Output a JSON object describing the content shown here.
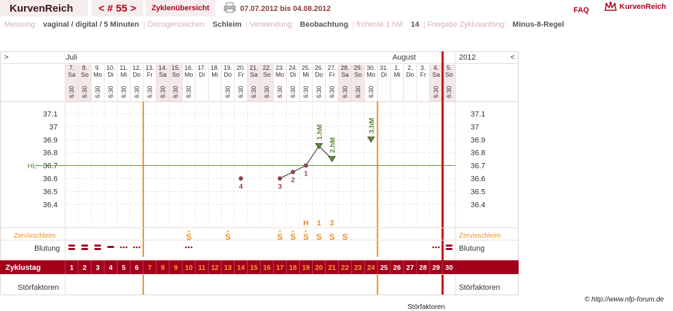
{
  "app": {
    "name": "KurvenReich",
    "cycle_nr": "< # 55 >",
    "overview_link": "Zyklenübersicht",
    "date_range": "07.07.2012 bis 04.08.2012",
    "faq": "FAQ",
    "logo_text": "KurvenReich"
  },
  "info": [
    {
      "label": "Messung:",
      "value": "vaginal / digital / 5 Minuten"
    },
    {
      "label": "Östrogenzeichen:",
      "value": "Schleim"
    },
    {
      "label": "Verwendung:",
      "value": "Beobachtung"
    },
    {
      "label": "früheste 1.hM:",
      "value": "14"
    },
    {
      "label": "Freigabe Zyklusanfang:",
      "value": "Minus-8-Regel"
    }
  ],
  "nav": {
    "prev": ">",
    "next": "<",
    "year": "2012",
    "month1": "Juli",
    "month2": "August"
  },
  "days": [
    {
      "d": "7.",
      "w": "Sa",
      "t": "6:30"
    },
    {
      "d": "8.",
      "w": "So",
      "t": "6:30"
    },
    {
      "d": "9.",
      "w": "Mo",
      "t": "6:30"
    },
    {
      "d": "10.",
      "w": "Di",
      "t": "6:30"
    },
    {
      "d": "11.",
      "w": "Mi",
      "t": "6:30"
    },
    {
      "d": "12.",
      "w": "Do",
      "t": "6:30"
    },
    {
      "d": "13.",
      "w": "Fr",
      "t": "6:30"
    },
    {
      "d": "14.",
      "w": "Sa",
      "t": "6:30"
    },
    {
      "d": "15.",
      "w": "So",
      "t": "6:30"
    },
    {
      "d": "16.",
      "w": "Mo",
      "t": "6:30"
    },
    {
      "d": "17.",
      "w": "Di",
      "t": ""
    },
    {
      "d": "18.",
      "w": "Mi",
      "t": ""
    },
    {
      "d": "19.",
      "w": "Do",
      "t": "6:30"
    },
    {
      "d": "20.",
      "w": "Fr",
      "t": "6:30"
    },
    {
      "d": "21.",
      "w": "Sa",
      "t": "6:30"
    },
    {
      "d": "22.",
      "w": "So",
      "t": "6:30"
    },
    {
      "d": "23.",
      "w": "Mo",
      "t": "6:30"
    },
    {
      "d": "24.",
      "w": "Di",
      "t": "6:30"
    },
    {
      "d": "25.",
      "w": "Mi",
      "t": "6:30"
    },
    {
      "d": "26.",
      "w": "Do",
      "t": "6:30"
    },
    {
      "d": "27.",
      "w": "Fr",
      "t": "6:30"
    },
    {
      "d": "28.",
      "w": "Sa",
      "t": "6:30"
    },
    {
      "d": "29.",
      "w": "So",
      "t": "6:30"
    },
    {
      "d": "30.",
      "w": "Mo",
      "t": "6:30"
    },
    {
      "d": "31.",
      "w": "Di",
      "t": ""
    },
    {
      "d": "1.",
      "w": "Mi",
      "t": ""
    },
    {
      "d": "2.",
      "w": "Do",
      "t": ""
    },
    {
      "d": "3.",
      "w": "Fr",
      "t": ""
    },
    {
      "d": "4.",
      "w": "Sa",
      "t": "6:30"
    },
    {
      "d": "5.",
      "w": "So",
      "t": "6:30"
    }
  ],
  "y_ticks": [
    "37.1",
    "37",
    "36.9",
    "36.8",
    "36.7",
    "36.6",
    "36.5",
    "36.4"
  ],
  "hl_label": "HL:",
  "hl_value": 36.7,
  "temps": [
    {
      "day": 14,
      "temp": 36.6,
      "label": "4",
      "kind": "dot"
    },
    {
      "day": 17,
      "temp": 36.6,
      "label": "3",
      "kind": "dot"
    },
    {
      "day": 18,
      "temp": 36.65,
      "label": "2",
      "kind": "dot"
    },
    {
      "day": 19,
      "temp": 36.7,
      "label": "1",
      "kind": "dot"
    },
    {
      "day": 20,
      "temp": 36.85,
      "label": "1.hM",
      "kind": "tri"
    },
    {
      "day": 21,
      "temp": 36.75,
      "label": "2.hM",
      "kind": "tri"
    },
    {
      "day": 24,
      "temp": 36.9,
      "label": "3.hM",
      "kind": "tri"
    }
  ],
  "mucus_label": "Zervixschleim",
  "mucus": [
    {
      "day": 10,
      "sym": "S",
      "mark": "+"
    },
    {
      "day": 13,
      "sym": "S",
      "mark": "+"
    },
    {
      "day": 17,
      "sym": "S",
      "mark": "+"
    },
    {
      "day": 18,
      "sym": "S",
      "mark": "+"
    },
    {
      "day": 19,
      "sym": "S",
      "mark": "+"
    },
    {
      "day": 20,
      "sym": "S",
      "mark": ""
    },
    {
      "day": 21,
      "sym": "S",
      "mark": ""
    },
    {
      "day": 22,
      "sym": "S",
      "mark": ""
    }
  ],
  "peak_marks": [
    {
      "day": 19,
      "text": "H"
    },
    {
      "day": 20,
      "text": "1"
    },
    {
      "day": 21,
      "text": "2"
    }
  ],
  "bleeding_label": "Blutung",
  "bleeding": [
    {
      "day": 1,
      "level": "heavy"
    },
    {
      "day": 2,
      "level": "heavy"
    },
    {
      "day": 3,
      "level": "heavy"
    },
    {
      "day": 4,
      "level": "medium"
    },
    {
      "day": 5,
      "level": "light"
    },
    {
      "day": 6,
      "level": "light"
    },
    {
      "day": 10,
      "level": "light"
    },
    {
      "day": 29,
      "level": "light"
    },
    {
      "day": 30,
      "level": "heavy"
    }
  ],
  "cycle_label": "Zyklustag",
  "cycle_days": [
    "1",
    "2",
    "3",
    "4",
    "5",
    "6",
    "7",
    "8",
    "9",
    "10",
    "11",
    "12",
    "13",
    "14",
    "15",
    "16",
    "17",
    "18",
    "19",
    "20",
    "21",
    "22",
    "23",
    "24",
    "25",
    "26",
    "27",
    "28",
    "29",
    "30"
  ],
  "stoer_label": "Störfaktoren",
  "right_labels": {
    "year": "2012",
    "mucus": "Zervixschleim",
    "bleeding": "Blutung",
    "stoer": "Störfaktoren"
  },
  "copyright": "© http://www.nfp-forum.de",
  "stray_text": "Störfaktoren",
  "colors": {
    "accent": "#b3001b",
    "orange": "#e8901e",
    "green": "#5a8a3a",
    "cycle_bar": "#a3001c"
  }
}
